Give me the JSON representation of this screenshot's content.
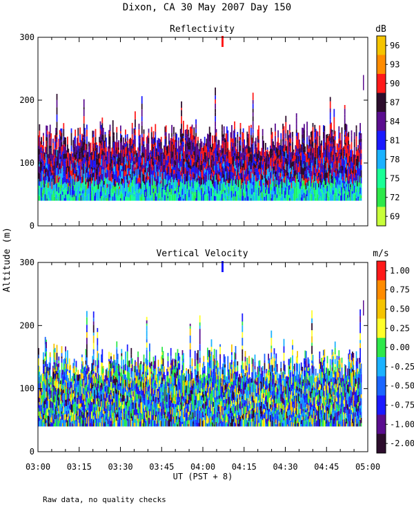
{
  "title": "Dixon, CA 30 May 2007  Day 150",
  "ylabel": "Altitude (m)",
  "xlabel": "UT  (PST + 8)",
  "footnote": "Raw data, no quality checks",
  "chart_data": [
    {
      "type": "heatmap",
      "title": "Reflectivity",
      "x": "time UT 03:00-05:00",
      "ylabel": "Altitude (m)",
      "ylim": [
        0,
        300
      ],
      "yticks": [
        0,
        100,
        200,
        300
      ],
      "colorbar": {
        "unit": "dB",
        "ticks": [
          "96",
          "93",
          "90",
          "87",
          "84",
          "81",
          "78",
          "75",
          "72",
          "69"
        ],
        "colors": [
          "#f5c400",
          "#ff8c00",
          "#ff1a1a",
          "#2d0d2d",
          "#5a0d8f",
          "#1a1aff",
          "#1ab2ff",
          "#1aff96",
          "#2ee84a",
          "#c8ff3a"
        ]
      },
      "data_extent": {
        "time_start": "03:00",
        "time_end": "04:58",
        "alt_base_m": 40,
        "alt_typical_top_m": [
          110,
          160
        ],
        "alt_max_m": 300
      }
    },
    {
      "type": "heatmap",
      "title": "Vertical Velocity",
      "ylabel": "Altitude (m)",
      "ylim": [
        0,
        300
      ],
      "yticks": [
        0,
        100,
        200,
        300
      ],
      "colorbar": {
        "unit": "m/s",
        "ticks": [
          "1.00",
          "0.75",
          "0.50",
          "0.25",
          "0.00",
          "-0.25",
          "-0.50",
          "-0.75",
          "-1.00",
          "-2.00"
        ],
        "colors": [
          "#ff1a1a",
          "#ff8c00",
          "#f5c400",
          "#ffff2a",
          "#2ee84a",
          "#1ab2ff",
          "#1a66ff",
          "#1a1aff",
          "#5a0d8f",
          "#2d0d2d"
        ]
      },
      "data_extent": {
        "time_start": "03:00",
        "time_end": "04:58",
        "alt_base_m": 40,
        "alt_typical_top_m": [
          110,
          160
        ],
        "alt_max_m": 300
      }
    }
  ],
  "xaxis": {
    "ticks": [
      "03:00",
      "03:15",
      "03:30",
      "03:45",
      "04:00",
      "04:15",
      "04:30",
      "04:45",
      "05:00"
    ]
  }
}
